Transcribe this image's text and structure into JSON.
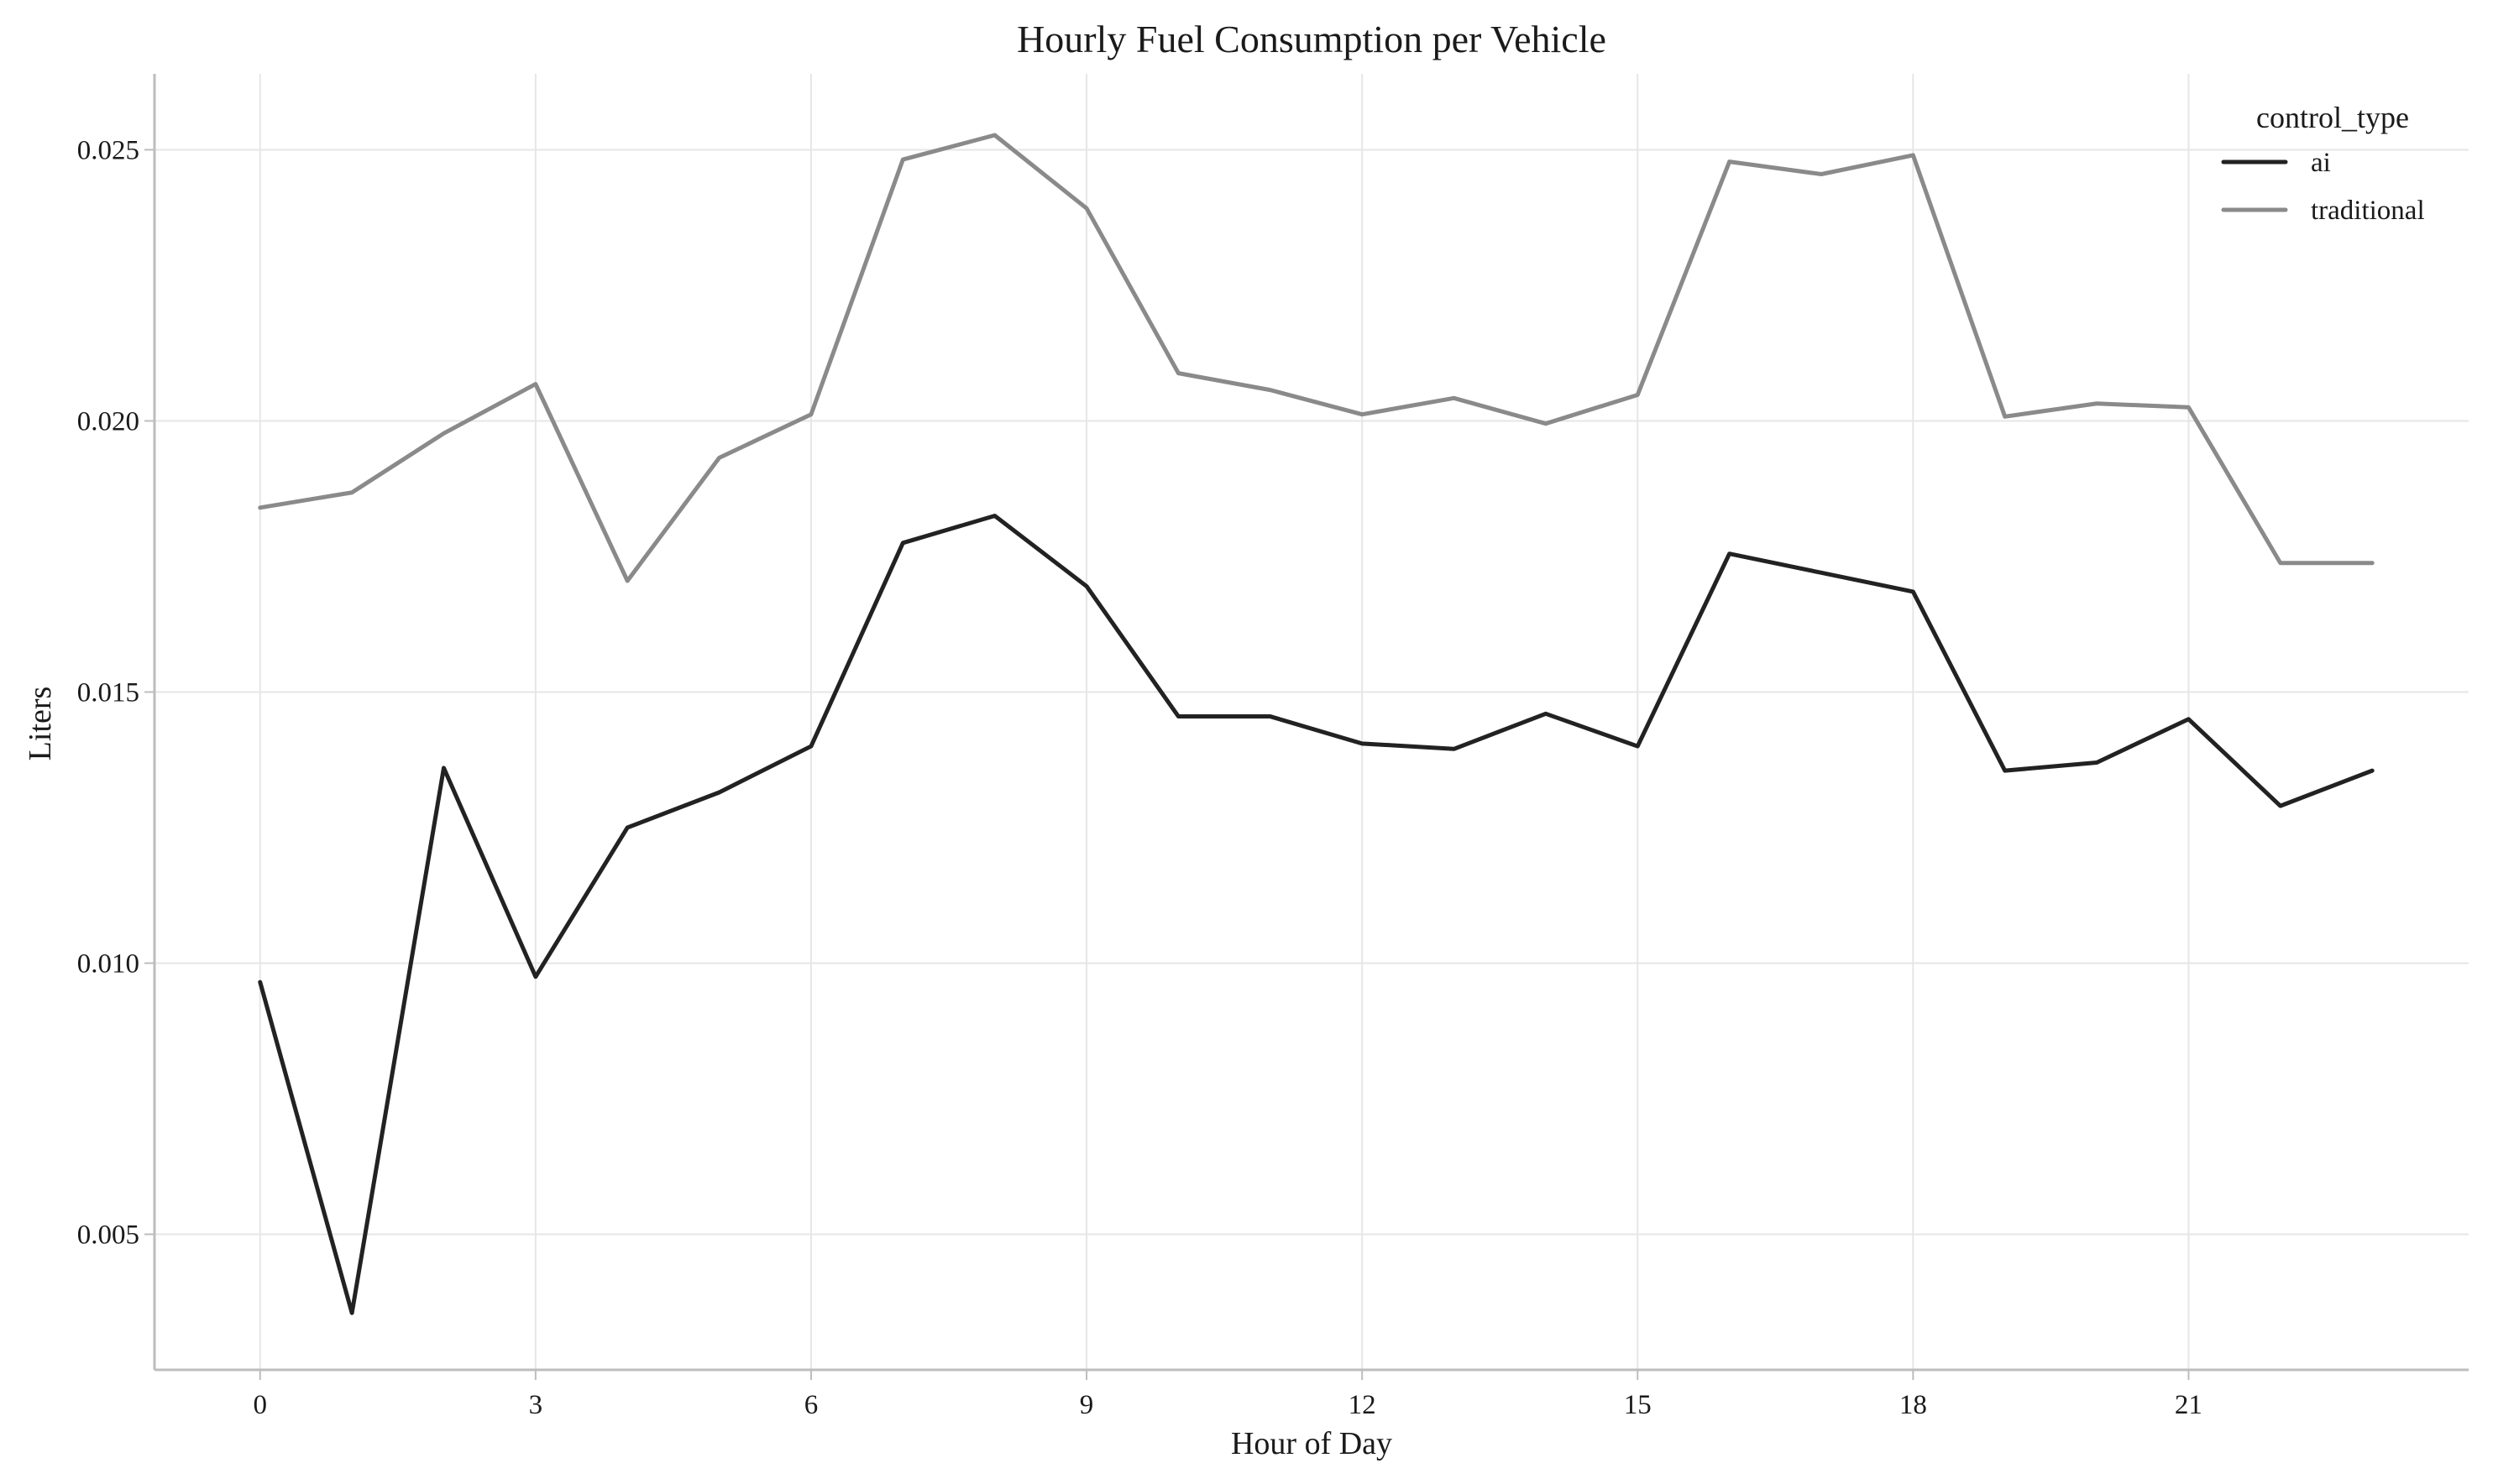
{
  "chart_data": {
    "type": "line",
    "title": "Hourly Fuel Consumption per Vehicle",
    "xlabel": "Hour of Day",
    "ylabel": "Liters",
    "xlim": [
      -1.15,
      24.05
    ],
    "ylim": [
      0.0025,
      0.0264
    ],
    "xticks": [
      0,
      3,
      6,
      9,
      12,
      15,
      18,
      21
    ],
    "yticks": [
      0.005,
      0.01,
      0.015,
      0.02,
      0.025
    ],
    "ytick_labels": [
      "0.005",
      "0.010",
      "0.015",
      "0.020",
      "0.025"
    ],
    "grid": true,
    "legend": {
      "title": "control_type",
      "position": "top-right"
    },
    "x": [
      0,
      1,
      2,
      3,
      4,
      5,
      6,
      7,
      8,
      9,
      10,
      11,
      12,
      13,
      14,
      15,
      16,
      17,
      18,
      19,
      20,
      21,
      22,
      23
    ],
    "series": [
      {
        "name": "ai",
        "color": "#222222",
        "values": [
          0.00965,
          0.00355,
          0.0136,
          0.00975,
          0.0125,
          0.01315,
          0.014,
          0.01775,
          0.01825,
          0.01695,
          0.01455,
          0.01455,
          0.01405,
          0.01395,
          0.0146,
          0.014,
          0.01755,
          0.0172,
          0.01685,
          0.01355,
          0.0137,
          0.0145,
          0.0129,
          0.01355
        ]
      },
      {
        "name": "traditional",
        "color": "#8a8a8a",
        "values": [
          0.0184,
          0.01868,
          0.01977,
          0.02068,
          0.01705,
          0.01932,
          0.02012,
          0.02482,
          0.02527,
          0.02392,
          0.02088,
          0.02057,
          0.02012,
          0.02042,
          0.01995,
          0.02048,
          0.02478,
          0.02455,
          0.0249,
          0.02008,
          0.02032,
          0.02025,
          0.01738,
          0.01738
        ]
      }
    ]
  }
}
